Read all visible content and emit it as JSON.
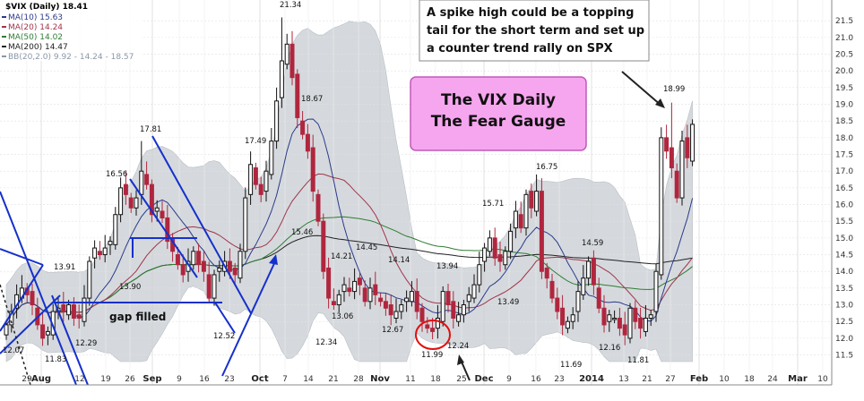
{
  "chart_data": {
    "type": "candlestick",
    "title": "$VIX (Daily) 18.41",
    "legend": [
      {
        "text": "MA(10) 15.63",
        "color": "#2b3a8c"
      },
      {
        "text": "MA(20) 14.24",
        "color": "#a0354a"
      },
      {
        "text": "MA(50) 14.02",
        "color": "#2e7d32"
      },
      {
        "text": "MA(200) 14.47",
        "color": "#222222"
      },
      {
        "text": "BB(20,2.0) 9.92 - 14.24 - 18.57",
        "color": "#8a97a8"
      }
    ],
    "ylim": [
      11.3,
      21.8
    ],
    "yticks": [
      "11.5",
      "12.0",
      "12.5",
      "13.0",
      "13.5",
      "14.0",
      "14.5",
      "15.0",
      "15.5",
      "16.0",
      "16.5",
      "17.0",
      "17.5",
      "18.0",
      "18.5",
      "19.0",
      "19.5",
      "20.0",
      "20.5",
      "21.0",
      "21.5"
    ],
    "xticks": [
      "29",
      "Aug",
      "12",
      "19",
      "26",
      "Sep",
      "9",
      "16",
      "23",
      "Oct",
      "7",
      "14",
      "21",
      "28",
      "Nov",
      "11",
      "18",
      "25",
      "Dec",
      "9",
      "16",
      "23",
      "2014",
      "13",
      "21",
      "27",
      "Feb",
      "10",
      "18",
      "24",
      "Mar",
      "10"
    ],
    "bold_xticks": [
      "Aug",
      "Sep",
      "Oct",
      "Nov",
      "Dec",
      "2014",
      "Feb",
      "Mar"
    ],
    "closes": [
      12.4,
      12.8,
      13.3,
      13.5,
      13.3,
      13.0,
      12.4,
      12.0,
      12.2,
      12.8,
      12.9,
      12.8,
      13.0,
      12.6,
      12.6,
      13.2,
      14.3,
      14.7,
      14.5,
      14.7,
      14.9,
      15.7,
      16.5,
      16.3,
      15.9,
      16.2,
      17.0,
      16.6,
      15.7,
      15.9,
      15.6,
      14.9,
      14.6,
      14.2,
      13.9,
      14.3,
      14.6,
      14.2,
      14.0,
      13.2,
      13.9,
      14.1,
      14.3,
      14.0,
      13.9,
      14.6,
      16.2,
      17.2,
      16.6,
      16.3,
      17.0,
      17.9,
      19.1,
      20.3,
      20.8,
      19.8,
      18.6,
      18.1,
      17.6,
      16.4,
      15.5,
      14.0,
      13.2,
      13.0,
      13.3,
      13.6,
      13.4,
      13.7,
      13.6,
      13.1,
      13.5,
      13.3,
      13.1,
      12.9,
      12.7,
      12.8,
      13.0,
      13.2,
      13.4,
      12.8,
      12.5,
      12.3,
      12.2,
      12.6,
      13.4,
      13.0,
      12.6,
      12.7,
      13.0,
      13.3,
      13.6,
      14.2,
      14.7,
      15.0,
      14.4,
      14.3,
      14.6,
      15.2,
      15.8,
      15.3,
      16.3,
      15.9,
      16.4,
      14.0,
      13.8,
      13.2,
      12.8,
      12.4,
      12.5,
      12.7,
      13.4,
      13.8,
      14.3,
      13.6,
      12.9,
      12.4,
      12.7,
      12.6,
      12.3,
      12.1,
      12.9,
      12.5,
      12.3,
      12.6,
      12.7,
      14.0,
      18.0,
      17.6,
      17.1,
      16.2,
      17.9,
      17.4,
      18.4
    ]
  },
  "labels": {
    "price": [
      "12.07",
      "13.91",
      "11.83",
      "12.29",
      "16.56",
      "13.90",
      "17.81",
      "12.52",
      "17.49",
      "21.34",
      "18.67",
      "15.46",
      "12.34",
      "14.21",
      "14.45",
      "13.06",
      "14.14",
      "12.67",
      "11.99",
      "13.94",
      "12.24",
      "15.71",
      "13.49",
      "16.75",
      "11.69",
      "14.59",
      "12.16",
      "11.81",
      "18.99"
    ],
    "gap_filled": "gap filled"
  },
  "callouts": {
    "note_lines": [
      "A spike high could be a topping",
      "tail for the short term and set up",
      "a counter trend rally on SPX"
    ],
    "gauge_lines": [
      "The VIX Daily",
      "The Fear Gauge"
    ]
  },
  "colors": {
    "up": "#111111",
    "down": "#b0263e",
    "band": "#d5d9dd",
    "trend": "#1530cc",
    "gauge_fill": "#f6a6ef",
    "gauge_border": "#c05ab8"
  }
}
